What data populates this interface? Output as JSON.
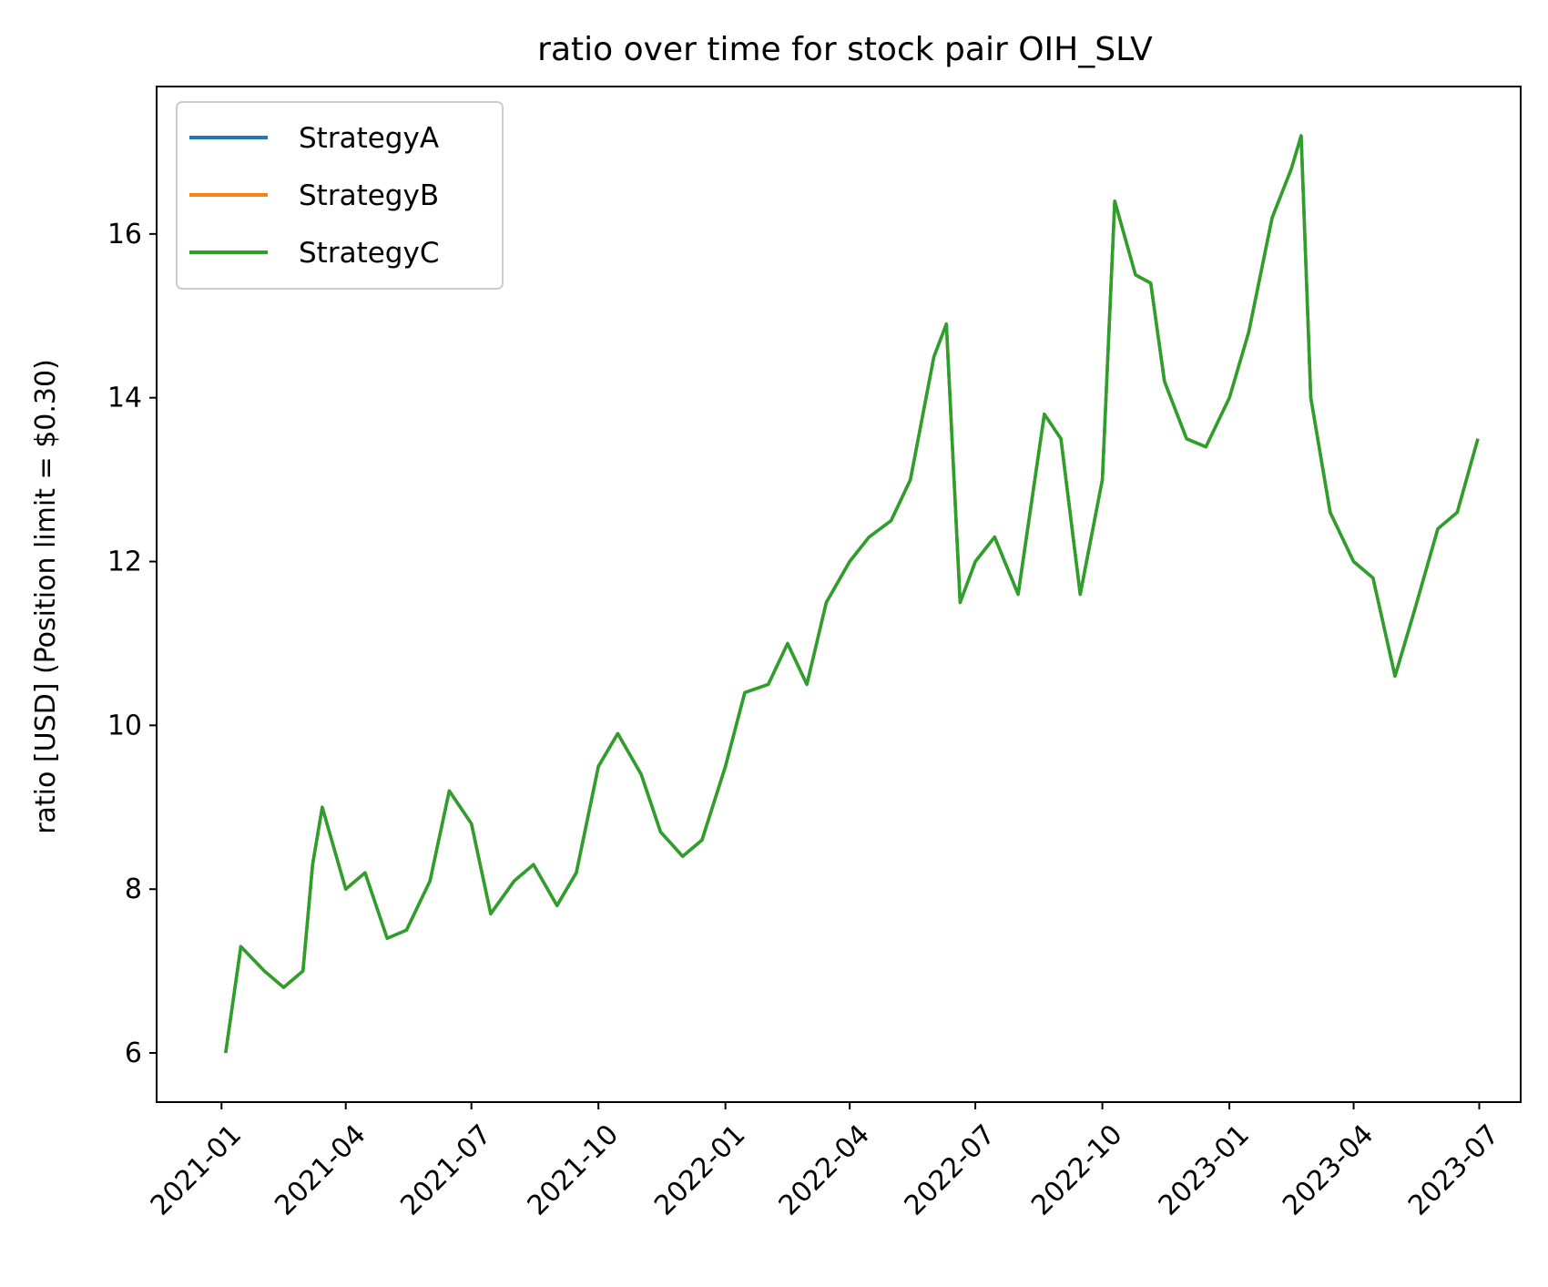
{
  "chart_data": {
    "type": "line",
    "title": "ratio over time for stock pair OIH_SLV",
    "xlabel": "",
    "ylabel": "ratio [USD] (Position limit = $0.30)",
    "x_ticks": [
      "2021-01",
      "2021-04",
      "2021-07",
      "2021-10",
      "2022-01",
      "2022-04",
      "2022-07",
      "2022-10",
      "2023-01",
      "2023-04",
      "2023-07"
    ],
    "y_ticks": [
      "6",
      "8",
      "10",
      "12",
      "14",
      "16"
    ],
    "xlim": [
      "2020-11-15",
      "2023-07-31"
    ],
    "ylim": [
      5.4,
      17.8
    ],
    "grid": false,
    "legend_position": "upper-left",
    "series": [
      {
        "name": "StrategyA",
        "color": "#1f77b4",
        "x": [
          "2021-01-04",
          "2021-01-15",
          "2021-02-01",
          "2021-02-15",
          "2021-03-01",
          "2021-03-08",
          "2021-03-15",
          "2021-04-01",
          "2021-04-15",
          "2021-05-01",
          "2021-05-15",
          "2021-06-01",
          "2021-06-15",
          "2021-07-01",
          "2021-07-15",
          "2021-08-01",
          "2021-08-15",
          "2021-09-01",
          "2021-09-15",
          "2021-10-01",
          "2021-10-15",
          "2021-11-01",
          "2021-11-15",
          "2021-12-01",
          "2021-12-15",
          "2022-01-01",
          "2022-01-15",
          "2022-02-01",
          "2022-02-15",
          "2022-03-01",
          "2022-03-15",
          "2022-04-01",
          "2022-04-15",
          "2022-05-01",
          "2022-05-15",
          "2022-06-01",
          "2022-06-10",
          "2022-06-20",
          "2022-07-01",
          "2022-07-15",
          "2022-08-01",
          "2022-08-20",
          "2022-09-01",
          "2022-09-15",
          "2022-10-01",
          "2022-10-10",
          "2022-10-25",
          "2022-11-05",
          "2022-11-15",
          "2022-12-01",
          "2022-12-15",
          "2023-01-01",
          "2023-01-15",
          "2023-02-01",
          "2023-02-15",
          "2023-02-22",
          "2023-03-01",
          "2023-03-15",
          "2023-04-01",
          "2023-04-15",
          "2023-05-01",
          "2023-05-15",
          "2023-06-01",
          "2023-06-15",
          "2023-06-30"
        ],
        "values": [
          6.0,
          7.3,
          7.0,
          6.8,
          7.0,
          8.3,
          9.0,
          8.0,
          8.2,
          7.4,
          7.5,
          8.1,
          9.2,
          8.8,
          7.7,
          8.1,
          8.3,
          7.8,
          8.2,
          9.5,
          9.9,
          9.4,
          8.7,
          8.4,
          8.6,
          9.5,
          10.4,
          10.5,
          11.0,
          10.5,
          11.5,
          12.0,
          12.3,
          12.5,
          13.0,
          14.5,
          14.9,
          11.5,
          12.0,
          12.3,
          11.6,
          13.8,
          13.5,
          11.6,
          13.0,
          16.4,
          15.5,
          15.4,
          14.2,
          13.5,
          13.4,
          14.0,
          14.8,
          16.2,
          16.8,
          17.2,
          14.0,
          12.6,
          12.0,
          11.8,
          10.6,
          11.4,
          12.4,
          12.6,
          13.5
        ]
      },
      {
        "name": "StrategyB",
        "color": "#ff7f0e",
        "x": [
          "2021-01-04",
          "2021-01-15",
          "2021-02-01",
          "2021-02-15",
          "2021-03-01",
          "2021-03-08",
          "2021-03-15",
          "2021-04-01",
          "2021-04-15",
          "2021-05-01",
          "2021-05-15",
          "2021-06-01",
          "2021-06-15",
          "2021-07-01",
          "2021-07-15",
          "2021-08-01",
          "2021-08-15",
          "2021-09-01",
          "2021-09-15",
          "2021-10-01",
          "2021-10-15",
          "2021-11-01",
          "2021-11-15",
          "2021-12-01",
          "2021-12-15",
          "2022-01-01",
          "2022-01-15",
          "2022-02-01",
          "2022-02-15",
          "2022-03-01",
          "2022-03-15",
          "2022-04-01",
          "2022-04-15",
          "2022-05-01",
          "2022-05-15",
          "2022-06-01",
          "2022-06-10",
          "2022-06-20",
          "2022-07-01",
          "2022-07-15",
          "2022-08-01",
          "2022-08-20",
          "2022-09-01",
          "2022-09-15",
          "2022-10-01",
          "2022-10-10",
          "2022-10-25",
          "2022-11-05",
          "2022-11-15",
          "2022-12-01",
          "2022-12-15",
          "2023-01-01",
          "2023-01-15",
          "2023-02-01",
          "2023-02-15",
          "2023-02-22",
          "2023-03-01",
          "2023-03-15",
          "2023-04-01",
          "2023-04-15",
          "2023-05-01",
          "2023-05-15",
          "2023-06-01",
          "2023-06-15",
          "2023-06-30"
        ],
        "values": [
          6.0,
          7.3,
          7.0,
          6.8,
          7.0,
          8.3,
          9.0,
          8.0,
          8.2,
          7.4,
          7.5,
          8.1,
          9.2,
          8.8,
          7.7,
          8.1,
          8.3,
          7.8,
          8.2,
          9.5,
          9.9,
          9.4,
          8.7,
          8.4,
          8.6,
          9.5,
          10.4,
          10.5,
          11.0,
          10.5,
          11.5,
          12.0,
          12.3,
          12.5,
          13.0,
          14.5,
          14.9,
          11.5,
          12.0,
          12.3,
          11.6,
          13.8,
          13.5,
          11.6,
          13.0,
          16.4,
          15.5,
          15.4,
          14.2,
          13.5,
          13.4,
          14.0,
          14.8,
          16.2,
          16.8,
          17.2,
          14.0,
          12.6,
          12.0,
          11.8,
          10.6,
          11.4,
          12.4,
          12.6,
          13.5
        ]
      },
      {
        "name": "StrategyC",
        "color": "#2ca02c",
        "x": [
          "2021-01-04",
          "2021-01-15",
          "2021-02-01",
          "2021-02-15",
          "2021-03-01",
          "2021-03-08",
          "2021-03-15",
          "2021-04-01",
          "2021-04-15",
          "2021-05-01",
          "2021-05-15",
          "2021-06-01",
          "2021-06-15",
          "2021-07-01",
          "2021-07-15",
          "2021-08-01",
          "2021-08-15",
          "2021-09-01",
          "2021-09-15",
          "2021-10-01",
          "2021-10-15",
          "2021-11-01",
          "2021-11-15",
          "2021-12-01",
          "2021-12-15",
          "2022-01-01",
          "2022-01-15",
          "2022-02-01",
          "2022-02-15",
          "2022-03-01",
          "2022-03-15",
          "2022-04-01",
          "2022-04-15",
          "2022-05-01",
          "2022-05-15",
          "2022-06-01",
          "2022-06-10",
          "2022-06-20",
          "2022-07-01",
          "2022-07-15",
          "2022-08-01",
          "2022-08-20",
          "2022-09-01",
          "2022-09-15",
          "2022-10-01",
          "2022-10-10",
          "2022-10-25",
          "2022-11-05",
          "2022-11-15",
          "2022-12-01",
          "2022-12-15",
          "2023-01-01",
          "2023-01-15",
          "2023-02-01",
          "2023-02-15",
          "2023-02-22",
          "2023-03-01",
          "2023-03-15",
          "2023-04-01",
          "2023-04-15",
          "2023-05-01",
          "2023-05-15",
          "2023-06-01",
          "2023-06-15",
          "2023-06-30"
        ],
        "values": [
          6.0,
          7.3,
          7.0,
          6.8,
          7.0,
          8.3,
          9.0,
          8.0,
          8.2,
          7.4,
          7.5,
          8.1,
          9.2,
          8.8,
          7.7,
          8.1,
          8.3,
          7.8,
          8.2,
          9.5,
          9.9,
          9.4,
          8.7,
          8.4,
          8.6,
          9.5,
          10.4,
          10.5,
          11.0,
          10.5,
          11.5,
          12.0,
          12.3,
          12.5,
          13.0,
          14.5,
          14.9,
          11.5,
          12.0,
          12.3,
          11.6,
          13.8,
          13.5,
          11.6,
          13.0,
          16.4,
          15.5,
          15.4,
          14.2,
          13.5,
          13.4,
          14.0,
          14.8,
          16.2,
          16.8,
          17.2,
          14.0,
          12.6,
          12.0,
          11.8,
          10.6,
          11.4,
          12.4,
          12.6,
          13.5
        ]
      }
    ]
  }
}
